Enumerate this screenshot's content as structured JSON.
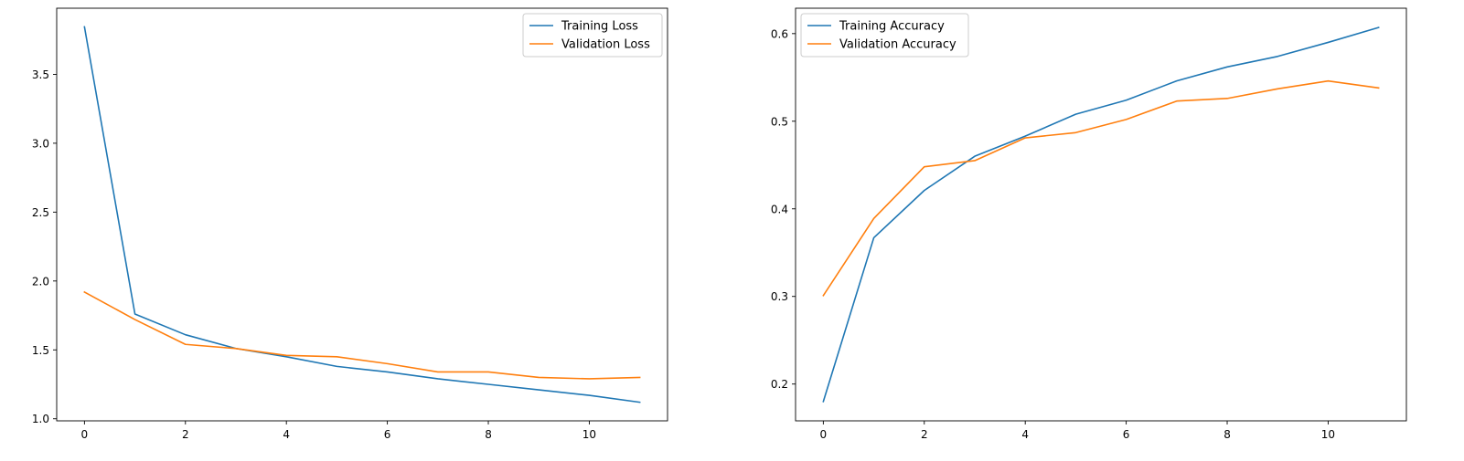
{
  "chart_data": [
    {
      "type": "line",
      "title": "",
      "xlabel": "",
      "ylabel": "",
      "x": [
        0,
        1,
        2,
        3,
        4,
        5,
        6,
        7,
        8,
        9,
        10,
        11
      ],
      "xlim": [
        -0.55,
        11.55
      ],
      "ylim": [
        0.985,
        3.98
      ],
      "xticks": [
        0,
        2,
        4,
        6,
        8,
        10
      ],
      "yticks": [
        1.0,
        1.5,
        2.0,
        2.5,
        3.0,
        3.5
      ],
      "xtick_labels": [
        "0",
        "2",
        "4",
        "6",
        "8",
        "10"
      ],
      "ytick_labels": [
        "1.0",
        "1.5",
        "2.0",
        "2.5",
        "3.0",
        "3.5"
      ],
      "grid": false,
      "legend_position": "top-right",
      "series": [
        {
          "name": "Training Loss",
          "color": "#1f77b4",
          "values": [
            3.845,
            1.76,
            1.61,
            1.51,
            1.45,
            1.38,
            1.34,
            1.29,
            1.25,
            1.21,
            1.17,
            1.12
          ]
        },
        {
          "name": "Validation Loss",
          "color": "#ff7f0e",
          "values": [
            1.92,
            1.72,
            1.54,
            1.51,
            1.46,
            1.45,
            1.4,
            1.34,
            1.34,
            1.3,
            1.29,
            1.3
          ]
        }
      ]
    },
    {
      "type": "line",
      "title": "",
      "xlabel": "",
      "ylabel": "",
      "x": [
        0,
        1,
        2,
        3,
        4,
        5,
        6,
        7,
        8,
        9,
        10,
        11
      ],
      "xlim": [
        -0.55,
        11.55
      ],
      "ylim": [
        0.158,
        0.629
      ],
      "xticks": [
        0,
        2,
        4,
        6,
        8,
        10
      ],
      "yticks": [
        0.2,
        0.3,
        0.4,
        0.5,
        0.6
      ],
      "xtick_labels": [
        "0",
        "2",
        "4",
        "6",
        "8",
        "10"
      ],
      "ytick_labels": [
        "0.2",
        "0.3",
        "0.4",
        "0.5",
        "0.6"
      ],
      "grid": false,
      "legend_position": "top-left",
      "series": [
        {
          "name": "Training Accuracy",
          "color": "#1f77b4",
          "values": [
            0.18,
            0.367,
            0.421,
            0.46,
            0.483,
            0.508,
            0.524,
            0.546,
            0.562,
            0.574,
            0.59,
            0.607
          ]
        },
        {
          "name": "Validation Accuracy",
          "color": "#ff7f0e",
          "values": [
            0.301,
            0.389,
            0.448,
            0.455,
            0.481,
            0.487,
            0.502,
            0.523,
            0.526,
            0.537,
            0.546,
            0.538
          ]
        }
      ]
    }
  ]
}
